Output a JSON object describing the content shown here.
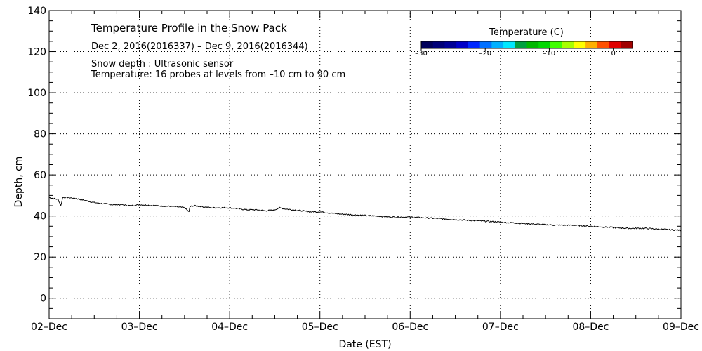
{
  "chart_data": {
    "type": "line",
    "title": "Temperature Profile in the Snow Pack",
    "subtitle": "Dec  2, 2016(2016337) – Dec  9, 2016(2016344)",
    "annotations": [
      "Snow depth : Ultrasonic sensor",
      "Temperature: 16 probes at levels from –10 cm to 90 cm"
    ],
    "xlabel": "Date (EST)",
    "ylabel": "Depth, cm",
    "xlim": [
      0,
      7
    ],
    "ylim": [
      -10,
      140
    ],
    "x_ticks": [
      {
        "value": 0,
        "label": "02–Dec"
      },
      {
        "value": 1,
        "label": "03–Dec"
      },
      {
        "value": 2,
        "label": "04–Dec"
      },
      {
        "value": 3,
        "label": "05–Dec"
      },
      {
        "value": 4,
        "label": "06–Dec"
      },
      {
        "value": 5,
        "label": "07–Dec"
      },
      {
        "value": 6,
        "label": "08–Dec"
      },
      {
        "value": 7,
        "label": "09–Dec"
      }
    ],
    "y_ticks": [
      {
        "value": 0,
        "label": "0"
      },
      {
        "value": 20,
        "label": "20"
      },
      {
        "value": 40,
        "label": "40"
      },
      {
        "value": 60,
        "label": "60"
      },
      {
        "value": 80,
        "label": "80"
      },
      {
        "value": 100,
        "label": "100"
      },
      {
        "value": 120,
        "label": "120"
      },
      {
        "value": 140,
        "label": "140"
      }
    ],
    "grid": true,
    "series": [
      {
        "color": "#000000",
        "x": [
          0.0,
          0.05,
          0.1,
          0.13,
          0.15,
          0.17,
          0.2,
          0.3,
          0.4,
          0.5,
          0.6,
          0.7,
          0.8,
          0.9,
          1.0,
          1.2,
          1.4,
          1.5,
          1.55,
          1.56,
          1.6,
          1.7,
          1.8,
          1.9,
          2.0,
          2.1,
          2.2,
          2.3,
          2.4,
          2.5,
          2.55,
          2.6,
          2.7,
          2.8,
          2.9,
          3.0,
          3.2,
          3.4,
          3.6,
          3.8,
          4.0,
          4.2,
          4.4,
          4.6,
          4.8,
          5.0,
          5.2,
          5.4,
          5.6,
          5.8,
          6.0,
          6.2,
          6.4,
          6.6,
          6.8,
          7.0
        ],
        "y": [
          49.0,
          48.5,
          48.0,
          45.0,
          49.0,
          49.0,
          49.0,
          48.5,
          47.5,
          46.5,
          46.0,
          45.5,
          45.5,
          45.0,
          45.5,
          45.0,
          44.5,
          44.0,
          42.0,
          44.5,
          45.0,
          44.5,
          44.0,
          44.0,
          44.0,
          43.5,
          43.0,
          43.0,
          42.5,
          43.0,
          44.0,
          43.5,
          43.0,
          42.5,
          42.0,
          42.0,
          41.0,
          40.5,
          40.0,
          39.5,
          39.5,
          39.0,
          38.5,
          38.0,
          37.5,
          37.0,
          36.5,
          36.0,
          35.5,
          35.5,
          35.0,
          34.5,
          34.0,
          34.0,
          33.5,
          33.0
        ]
      }
    ],
    "colorbar": {
      "title": "Temperature (C)",
      "min": -30,
      "max": 3,
      "tick_values": [
        -30,
        -20,
        -10,
        0
      ],
      "tick_labels": [
        "–30",
        "–20",
        "–10",
        "0"
      ],
      "colors": [
        "#00005a",
        "#000078",
        "#000096",
        "#0000c8",
        "#0028ff",
        "#0070ff",
        "#00b0ff",
        "#00e8ff",
        "#00a040",
        "#00b800",
        "#00d800",
        "#40ff00",
        "#a8ff00",
        "#ffff00",
        "#ffb000",
        "#ff5000",
        "#e00000",
        "#a00000"
      ]
    }
  }
}
